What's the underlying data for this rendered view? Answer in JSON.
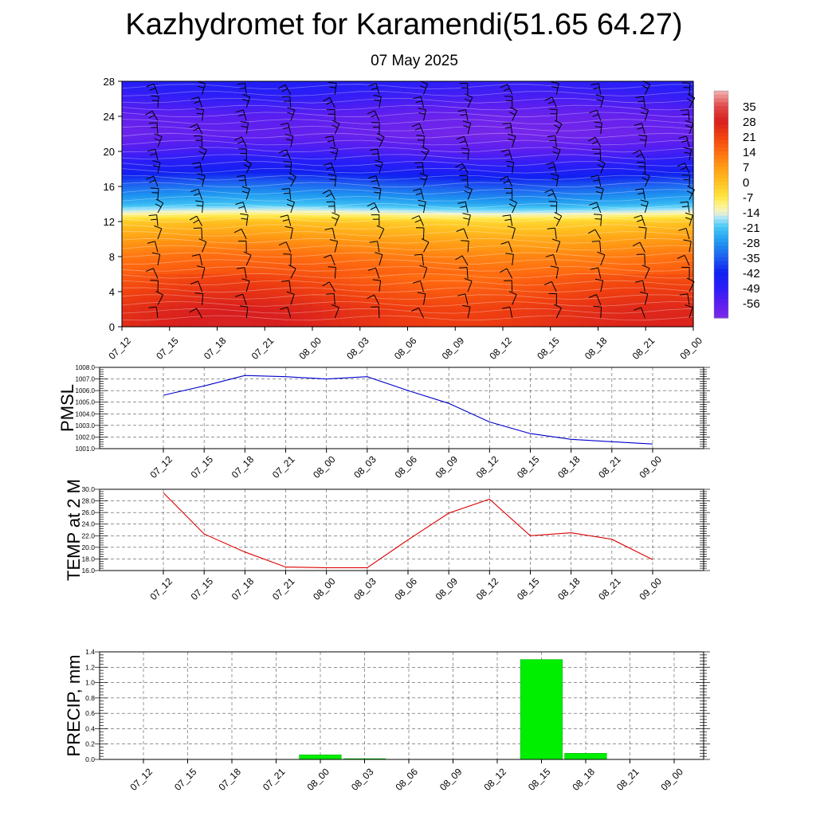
{
  "title": "Kazhydromet for Karamendi(51.65 64.27)",
  "subtitle": "07 May 2025",
  "time_labels": [
    "07_12",
    "07_15",
    "07_18",
    "07_21",
    "08_00",
    "08_03",
    "08_06",
    "08_09",
    "08_12",
    "08_15",
    "08_18",
    "08_21",
    "09_00"
  ],
  "chart_data": [
    {
      "type": "heatmap",
      "xlabel": "",
      "ylabel": "",
      "yticks": [
        0,
        4,
        8,
        12,
        16,
        20,
        24,
        28
      ],
      "ylim": [
        0,
        28
      ],
      "colorbar_labels": [
        "35",
        "28",
        "21",
        "14",
        "7",
        "0",
        "-7",
        "-14",
        "-21",
        "-28",
        "-35",
        "-42",
        "-49",
        "-56"
      ],
      "colorbar_range": [
        -63,
        42
      ],
      "temperature_profile_by_level": [
        {
          "level": 0,
          "value": 25
        },
        {
          "level": 2,
          "value": 24
        },
        {
          "level": 4,
          "value": 20
        },
        {
          "level": 6,
          "value": 16
        },
        {
          "level": 8,
          "value": 12
        },
        {
          "level": 10,
          "value": 6
        },
        {
          "level": 12,
          "value": -2
        },
        {
          "level": 13,
          "value": -14
        },
        {
          "level": 14,
          "value": -24
        },
        {
          "level": 16,
          "value": -34
        },
        {
          "level": 18,
          "value": -46
        },
        {
          "level": 20,
          "value": -54
        },
        {
          "level": 22,
          "value": -60
        },
        {
          "level": 24,
          "value": -58
        },
        {
          "level": 26,
          "value": -52
        },
        {
          "level": 28,
          "value": -48
        }
      ],
      "wind_barbs": true
    },
    {
      "type": "line",
      "ylabel": "PMSL",
      "ylim": [
        1001.0,
        1008.0
      ],
      "yticks": [
        "1001.0",
        "1002.0",
        "1003.0",
        "1004.0",
        "1005.0",
        "1006.0",
        "1007.0",
        "1008.0"
      ],
      "categories": [
        "07_12",
        "07_15",
        "07_18",
        "07_21",
        "08_00",
        "08_03",
        "08_06",
        "08_09",
        "08_12",
        "08_15",
        "08_18",
        "08_21",
        "09_00"
      ],
      "values": [
        1005.6,
        1006.4,
        1007.3,
        1007.2,
        1007.0,
        1007.2,
        1006.0,
        1004.9,
        1003.3,
        1002.3,
        1001.8,
        1001.6,
        1001.4
      ],
      "color": "#0000cc"
    },
    {
      "type": "line",
      "ylabel": "TEMP at 2 M",
      "ylim": [
        16.0,
        30.0
      ],
      "yticks": [
        "16.0",
        "18.0",
        "20.0",
        "22.0",
        "24.0",
        "26.0",
        "28.0",
        "30.0"
      ],
      "categories": [
        "07_12",
        "07_15",
        "07_18",
        "07_21",
        "08_00",
        "08_03",
        "08_06",
        "08_09",
        "08_12",
        "08_15",
        "08_18",
        "08_21",
        "09_00"
      ],
      "values": [
        29.4,
        22.3,
        19.2,
        16.6,
        16.5,
        16.5,
        21.3,
        25.9,
        28.3,
        22.0,
        22.5,
        21.4,
        17.9
      ],
      "color": "#dd0000"
    },
    {
      "type": "bar",
      "ylabel": "PRECIP, mm",
      "ylim": [
        0.0,
        1.4
      ],
      "yticks": [
        "0.0",
        "0.2",
        "0.4",
        "0.6",
        "0.8",
        "1.0",
        "1.2",
        "1.4"
      ],
      "categories": [
        "07_12",
        "07_15",
        "07_18",
        "07_21",
        "08_00",
        "08_03",
        "08_06",
        "08_09",
        "08_12",
        "08_15",
        "08_18",
        "08_21",
        "09_00"
      ],
      "values": [
        0,
        0,
        0,
        0,
        0.06,
        0.01,
        0,
        0,
        0,
        1.3,
        0.08,
        0,
        0
      ],
      "color": "#00ee00"
    }
  ]
}
